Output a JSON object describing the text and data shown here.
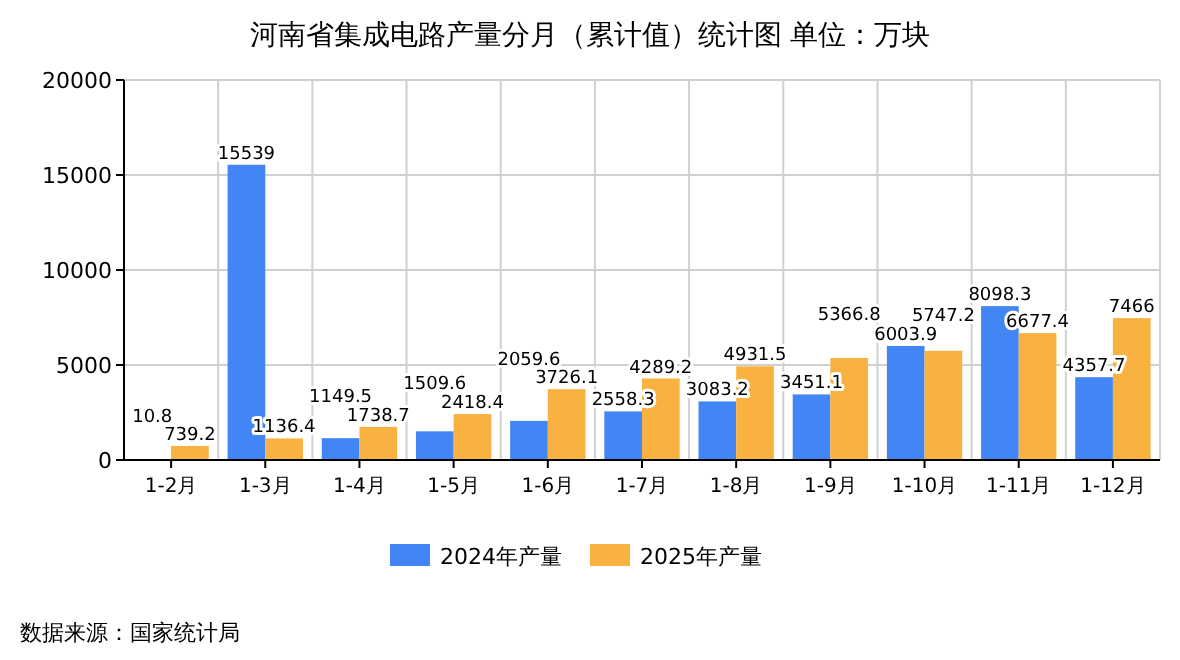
{
  "chart_data": {
    "type": "bar",
    "title": "河南省集成电路产量分月（累计值）统计图 单位：万块",
    "categories": [
      "1-2月",
      "1-3月",
      "1-4月",
      "1-5月",
      "1-6月",
      "1-7月",
      "1-8月",
      "1-9月",
      "1-10月",
      "1-11月",
      "1-12月"
    ],
    "series": [
      {
        "name": "2024年产量",
        "color": "#4285f4",
        "values": [
          10.8,
          15539,
          1149.5,
          1509.6,
          2059.6,
          2558.3,
          3083.2,
          3451.1,
          6003.9,
          8098.3,
          4357.7
        ]
      },
      {
        "name": "2025年产量",
        "color": "#f9b13f",
        "values": [
          739.2,
          1136.4,
          1738.7,
          2418.4,
          3726.1,
          4289.2,
          4931.5,
          5366.8,
          5747.2,
          6677.4,
          7466
        ]
      }
    ],
    "ylim": [
      0,
      20000
    ],
    "yticks": [
      0,
      5000,
      10000,
      15000,
      20000
    ],
    "grid": true,
    "legend": "bottom",
    "data_labels": true,
    "annotations": [
      "数据来源：国家统计局"
    ]
  }
}
